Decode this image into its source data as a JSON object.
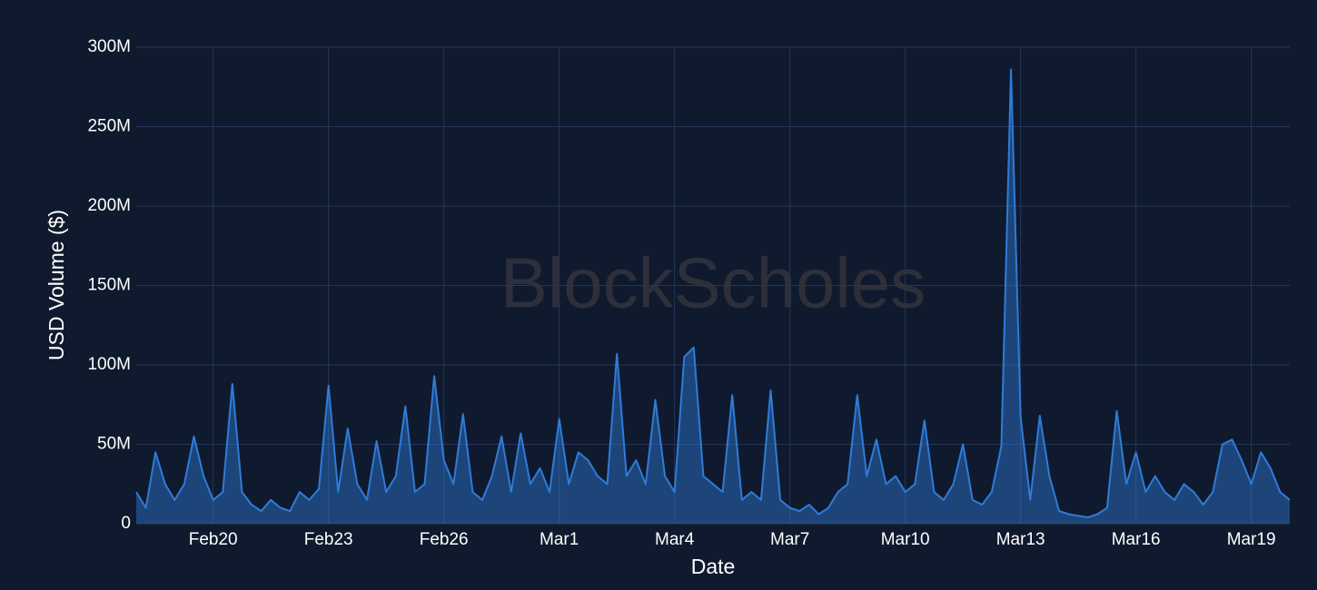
{
  "chart_data": {
    "type": "area",
    "watermark": "BlockScholes",
    "x_label": "Date",
    "y_label": "USD Volume ($)",
    "x": [
      0,
      0.25,
      0.5,
      0.75,
      1,
      1.25,
      1.5,
      1.75,
      2,
      2.25,
      2.5,
      2.75,
      3,
      3.25,
      3.5,
      3.75,
      4,
      4.25,
      4.5,
      4.75,
      5,
      5.25,
      5.5,
      5.75,
      6,
      6.25,
      6.5,
      6.75,
      7,
      7.25,
      7.5,
      7.75,
      8,
      8.25,
      8.5,
      8.75,
      9,
      9.25,
      9.5,
      9.75,
      10,
      10.25,
      10.5,
      10.75,
      11,
      11.25,
      11.5,
      11.75,
      12,
      12.25,
      12.5,
      12.75,
      13,
      13.25,
      13.5,
      13.75,
      14,
      14.25,
      14.5,
      14.75,
      15,
      15.25,
      15.5,
      15.75,
      16,
      16.25,
      16.5,
      16.75,
      17,
      17.25,
      17.5,
      17.75,
      18,
      18.25,
      18.5,
      18.75,
      19,
      19.25,
      19.5,
      19.75,
      20,
      20.25,
      20.5,
      20.75,
      21,
      21.25,
      21.5,
      21.75,
      22,
      22.25,
      22.5,
      22.75,
      23,
      23.25,
      23.5,
      23.75,
      24,
      24.25,
      24.5,
      24.75,
      25,
      25.25,
      25.5,
      25.75,
      26,
      26.25,
      26.5,
      26.75,
      27,
      27.25,
      27.5,
      27.75,
      28,
      28.25,
      28.5,
      28.75,
      29,
      29.25,
      29.5,
      29.75,
      30
    ],
    "series": [
      {
        "name": "USD Volume",
        "color": "#2f7bd8",
        "values": [
          20000000.0,
          10000000.0,
          45000000.0,
          25000000.0,
          15000000.0,
          25000000.0,
          55000000.0,
          30000000.0,
          15000000.0,
          20000000.0,
          88000000.0,
          20000000.0,
          12000000.0,
          8000000.0,
          15000000.0,
          10000000.0,
          8000000.0,
          20000000.0,
          15000000.0,
          22000000.0,
          87000000.0,
          20000000.0,
          60000000.0,
          25000000.0,
          15000000.0,
          52000000.0,
          20000000.0,
          30000000.0,
          74000000.0,
          20000000.0,
          25000000.0,
          93000000.0,
          40000000.0,
          25000000.0,
          69000000.0,
          20000000.0,
          15000000.0,
          30000000.0,
          55000000.0,
          20000000.0,
          57000000.0,
          25000000.0,
          35000000.0,
          20000000.0,
          66000000.0,
          25000000.0,
          45000000.0,
          40000000.0,
          30000000.0,
          25000000.0,
          107000000.0,
          30000000.0,
          40000000.0,
          25000000.0,
          78000000.0,
          30000000.0,
          20000000.0,
          105000000.0,
          111000000.0,
          30000000.0,
          25000000.0,
          20000000.0,
          81000000.0,
          15000000.0,
          20000000.0,
          15000000.0,
          84000000.0,
          15000000.0,
          10000000.0,
          8000000.0,
          12000000.0,
          6000000.0,
          10000000.0,
          20000000.0,
          25000000.0,
          81000000.0,
          30000000.0,
          53000000.0,
          25000000.0,
          30000000.0,
          20000000.0,
          25000000.0,
          65000000.0,
          20000000.0,
          15000000.0,
          25000000.0,
          50000000.0,
          15000000.0,
          12000000.0,
          20000000.0,
          49000000.0,
          286000000.0,
          67000000.0,
          15000000.0,
          68000000.0,
          30000000.0,
          8000000.0,
          6000000.0,
          5000000.0,
          4000000.0,
          6000000.0,
          10000000.0,
          71000000.0,
          25000000.0,
          45000000.0,
          20000000.0,
          30000000.0,
          20000000.0,
          15000000.0,
          25000000.0,
          20000000.0,
          12000000.0,
          20000000.0,
          50000000.0,
          53000000.0,
          40000000.0,
          25000000.0,
          45000000.0,
          35000000.0,
          20000000.0,
          15000000.0
        ]
      }
    ],
    "xlim": [
      0,
      30
    ],
    "xticks": [
      {
        "value": 2,
        "label": "Feb20"
      },
      {
        "value": 5,
        "label": "Feb23"
      },
      {
        "value": 8,
        "label": "Feb26"
      },
      {
        "value": 11,
        "label": "Mar1"
      },
      {
        "value": 14,
        "label": "Mar4"
      },
      {
        "value": 17,
        "label": "Mar7"
      },
      {
        "value": 20,
        "label": "Mar10"
      },
      {
        "value": 23,
        "label": "Mar13"
      },
      {
        "value": 26,
        "label": "Mar16"
      },
      {
        "value": 29,
        "label": "Mar19"
      }
    ],
    "ylim": [
      0,
      300000000
    ],
    "yticks": [
      0,
      {
        "value": 50000000,
        "label": "50M"
      },
      {
        "value": 100000000,
        "label": "100M"
      },
      {
        "value": 150000000,
        "label": "150M"
      },
      {
        "value": 200000000,
        "label": "200M"
      },
      {
        "value": 250000000,
        "label": "250M"
      },
      {
        "value": 300000000,
        "label": "300M"
      }
    ],
    "grid": true
  }
}
